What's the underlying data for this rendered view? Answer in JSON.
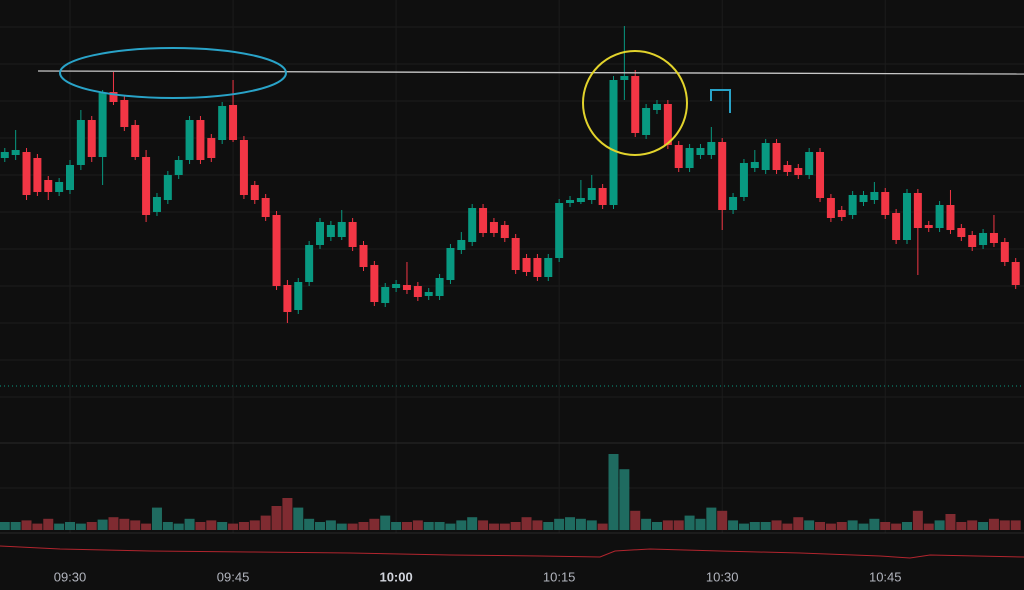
{
  "chart_data": {
    "type": "candlestick",
    "categories": [
      null,
      null,
      null,
      null,
      null,
      null,
      "09:30",
      null,
      null,
      null,
      null,
      null,
      null,
      null,
      null,
      null,
      null,
      null,
      null,
      null,
      null,
      "09:45",
      null,
      null,
      null,
      null,
      null,
      null,
      null,
      null,
      null,
      null,
      null,
      null,
      null,
      null,
      "10:00",
      null,
      null,
      null,
      null,
      null,
      null,
      null,
      null,
      null,
      null,
      null,
      null,
      null,
      null,
      "10:15",
      null,
      null,
      null,
      null,
      null,
      null,
      null,
      null,
      null,
      null,
      null,
      null,
      null,
      null,
      "10:30",
      null,
      null,
      null,
      null,
      null,
      null,
      null,
      null,
      null,
      null,
      null,
      null,
      null,
      null,
      "10:45",
      null,
      null,
      null,
      null,
      null,
      null,
      null,
      null,
      null,
      null,
      null,
      null
    ],
    "open": [
      282,
      285,
      288,
      282,
      260,
      248,
      250,
      275,
      320,
      283,
      348,
      340,
      315,
      283,
      228,
      240,
      265,
      280,
      320,
      302,
      300,
      335,
      300,
      255,
      242,
      225,
      155,
      130,
      158,
      195,
      203,
      203,
      218,
      195,
      175,
      137,
      152,
      155,
      154,
      144,
      144,
      160,
      190,
      198,
      232,
      218,
      215,
      202,
      182,
      182,
      163,
      182,
      237,
      238,
      240,
      252,
      235,
      360,
      364,
      305,
      330,
      336,
      295,
      272,
      285,
      285,
      298,
      230,
      243,
      272,
      270,
      297,
      275,
      272,
      265,
      288,
      242,
      230,
      225,
      238,
      240,
      248,
      227,
      200,
      247,
      215,
      212,
      235,
      212,
      205,
      195,
      207,
      198,
      178
    ],
    "high": [
      292,
      310,
      292,
      286,
      264,
      262,
      280,
      330,
      324,
      350,
      368,
      344,
      320,
      290,
      247,
      269,
      284,
      324,
      324,
      306,
      338,
      360,
      304,
      259,
      246,
      229,
      160,
      162,
      199,
      222,
      219,
      230,
      222,
      199,
      179,
      157,
      160,
      178,
      158,
      152,
      166,
      196,
      208,
      236,
      236,
      222,
      219,
      206,
      186,
      186,
      186,
      241,
      244,
      260,
      265,
      256,
      364,
      414,
      370,
      336,
      340,
      340,
      299,
      296,
      296,
      313,
      302,
      247,
      281,
      290,
      301,
      301,
      279,
      276,
      292,
      292,
      246,
      234,
      249,
      249,
      258,
      252,
      231,
      251,
      251,
      219,
      239,
      250,
      216,
      209,
      211,
      225,
      202,
      182
    ],
    "low": [
      278,
      280,
      240,
      244,
      240,
      244,
      246,
      270,
      278,
      255,
      335,
      309,
      280,
      218,
      224,
      236,
      261,
      276,
      276,
      278,
      296,
      298,
      241,
      236,
      219,
      150,
      117,
      126,
      154,
      191,
      199,
      200,
      189,
      169,
      134,
      133,
      148,
      146,
      139,
      140,
      140,
      156,
      186,
      194,
      203,
      203,
      198,
      166,
      164,
      159,
      159,
      178,
      233,
      236,
      236,
      231,
      231,
      340,
      303,
      301,
      326,
      291,
      268,
      268,
      281,
      281,
      210,
      226,
      239,
      268,
      266,
      266,
      264,
      261,
      261,
      238,
      218,
      219,
      221,
      234,
      236,
      221,
      196,
      196,
      165,
      208,
      208,
      206,
      199,
      189,
      191,
      193,
      174,
      151
    ],
    "close": [
      288,
      290,
      245,
      248,
      248,
      258,
      275,
      320,
      283,
      347,
      338,
      313,
      283,
      225,
      243,
      265,
      280,
      320,
      280,
      282,
      334,
      300,
      245,
      240,
      223,
      154,
      128,
      158,
      195,
      218,
      215,
      218,
      193,
      173,
      138,
      153,
      156,
      150,
      143,
      148,
      162,
      192,
      200,
      232,
      207,
      207,
      202,
      170,
      168,
      163,
      182,
      237,
      240,
      242,
      252,
      235,
      360,
      364,
      307,
      332,
      336,
      295,
      272,
      292,
      292,
      298,
      230,
      243,
      277,
      278,
      297,
      270,
      268,
      265,
      288,
      242,
      222,
      223,
      245,
      245,
      248,
      225,
      200,
      247,
      212,
      212,
      235,
      210,
      203,
      193,
      207,
      197,
      178,
      155
    ],
    "up_color": "#089981",
    "down_color": "#f23645",
    "ylim": [
      0,
      440
    ],
    "volume": {
      "values": [
        10,
        10,
        12,
        8,
        14,
        8,
        10,
        8,
        10,
        13,
        16,
        14,
        12,
        8,
        28,
        10,
        8,
        14,
        10,
        12,
        10,
        8,
        10,
        12,
        18,
        30,
        40,
        28,
        14,
        10,
        12,
        8,
        8,
        10,
        14,
        18,
        10,
        10,
        12,
        10,
        10,
        8,
        12,
        16,
        12,
        8,
        8,
        10,
        16,
        12,
        10,
        14,
        16,
        14,
        12,
        8,
        95,
        76,
        24,
        14,
        10,
        12,
        12,
        18,
        14,
        28,
        24,
        12,
        8,
        10,
        10,
        12,
        8,
        16,
        12,
        10,
        8,
        10,
        12,
        8,
        14,
        10,
        8,
        10,
        24,
        8,
        12,
        20,
        10,
        12,
        10,
        14,
        12,
        12
      ],
      "up_color": "#1f6b60",
      "down_color": "#7f2b31",
      "ylim": [
        0,
        100
      ]
    }
  }
}
